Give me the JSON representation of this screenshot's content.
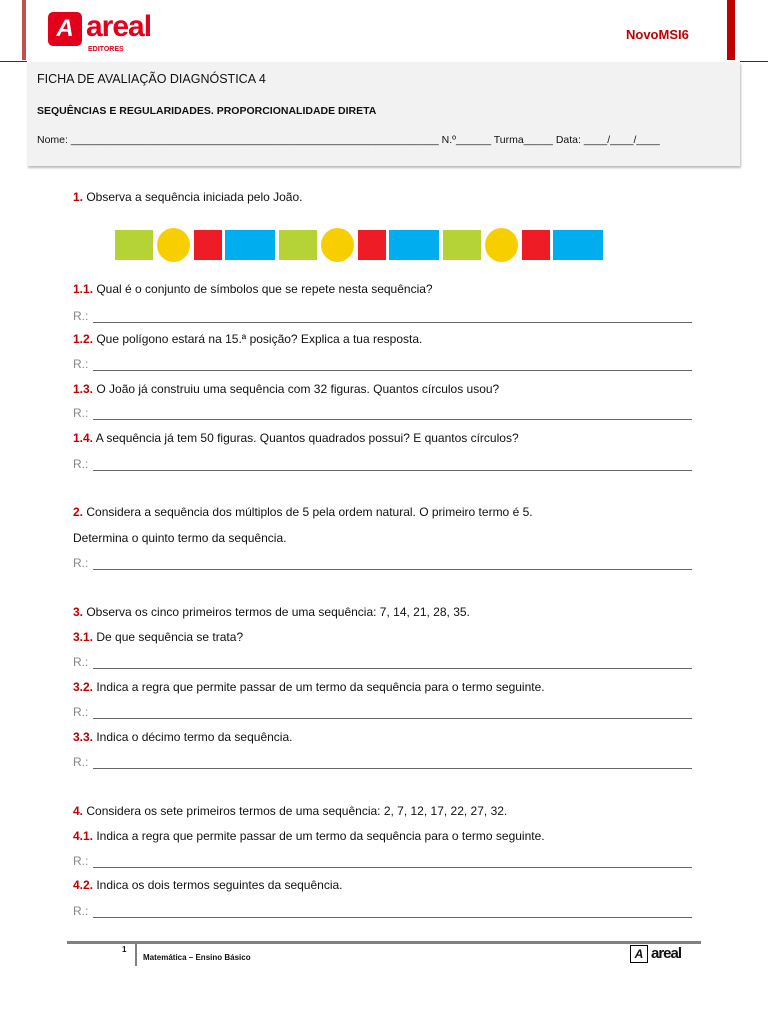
{
  "header": {
    "logo_text": "areal",
    "logo_sub": "EDITORES",
    "series": "NovoMSI6",
    "title": "FICHA DE AVALIAÇÃO DIAGNÓSTICA 4",
    "subtitle": "SEQUÊNCIAS E REGULARIDADES. PROPORCIONALIDADE DIRETA",
    "fields": "Nome: _______________________________________________________________ N.º______ Turma_____ Data: ____/____/____"
  },
  "colors": {
    "accent": "#c00000",
    "green": "#b5d334",
    "yellow": "#f7cf00",
    "red": "#ee1c25",
    "blue": "#00aeef"
  },
  "sequence": [
    "green-square",
    "yellow-circle",
    "red-square",
    "blue-rectangle",
    "green-square",
    "yellow-circle",
    "red-square",
    "blue-rectangle",
    "green-square",
    "yellow-circle",
    "red-square",
    "blue-rectangle"
  ],
  "answer_label": "R.:",
  "questions": [
    {
      "num": "1.",
      "text": " Observa a sequência iniciada pelo João."
    },
    {
      "num": "1.1.",
      "text": " Qual é o conjunto de símbolos que se repete nesta sequência?"
    },
    {
      "num": "1.2.",
      "text": " Que polígono estará na 15.ª posição? Explica a tua resposta."
    },
    {
      "num": "1.3.",
      "text": " O João já construiu uma sequência com 32 figuras. Quantos círculos usou?"
    },
    {
      "num": "1.4.",
      "text": " A sequência já tem 50 figuras. Quantos quadrados possui? E quantos círculos?"
    },
    {
      "num": "2.",
      "text": " Considera a sequência dos múltiplos de 5 pela ordem natural. O primeiro termo é 5."
    },
    {
      "num": "",
      "text": "Determina o quinto termo da sequência."
    },
    {
      "num": "3.",
      "text": " Observa os cinco primeiros termos de uma sequência: 7, 14, 21, 28, 35."
    },
    {
      "num": "3.1.",
      "text": " De que sequência se trata?"
    },
    {
      "num": "3.2.",
      "text": " Indica a regra que permite passar de um termo da sequência para o termo seguinte."
    },
    {
      "num": "3.3.",
      "text": " Indica o décimo termo da sequência."
    },
    {
      "num": "4.",
      "text": " Considera os sete primeiros termos de uma sequência: 2, 7, 12, 17, 22, 27, 32."
    },
    {
      "num": "4.1.",
      "text": " Indica a regra que permite passar de um termo da sequência para o termo seguinte."
    },
    {
      "num": "4.2.",
      "text": " Indica os dois termos seguintes da sequência."
    }
  ],
  "footer": {
    "page": "1",
    "text": "Matemática – Ensino Básico",
    "logo_text": "areal"
  }
}
